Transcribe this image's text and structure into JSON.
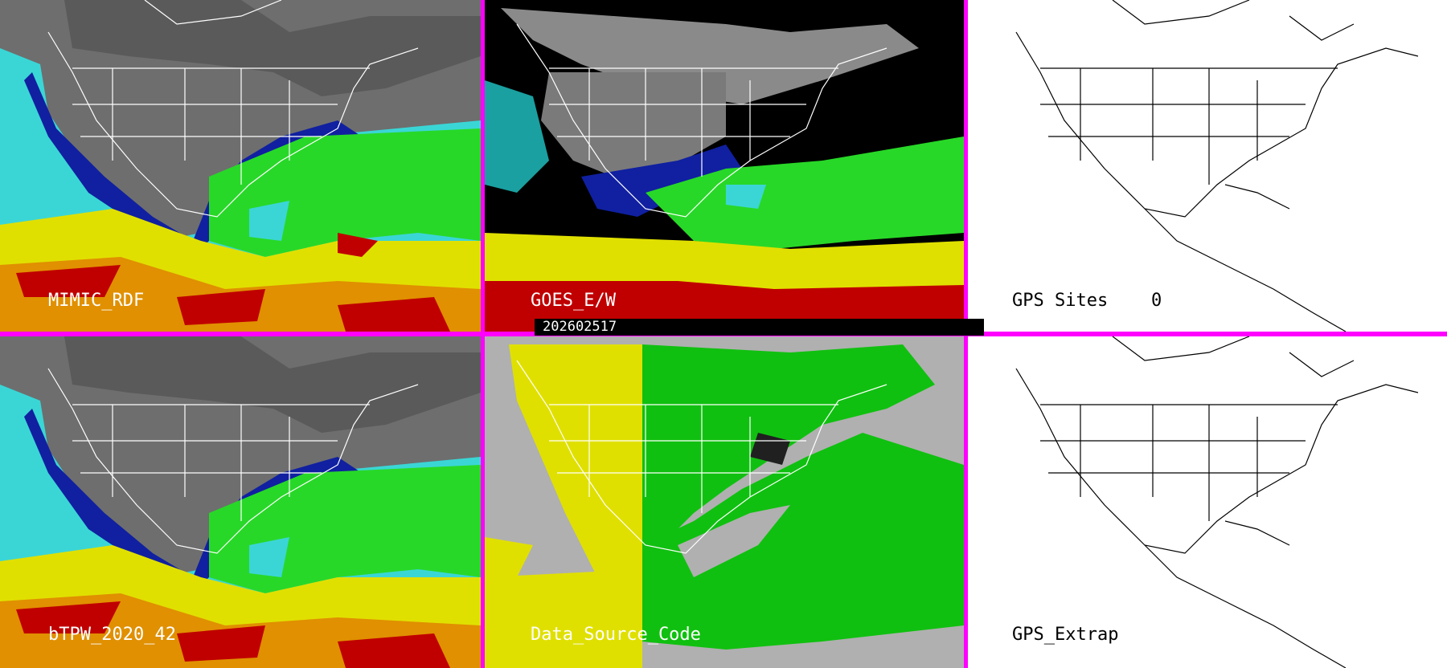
{
  "panels": {
    "top_left": {
      "label": "MIMIC_RDF"
    },
    "top_middle": {
      "label": "GOES_E/W"
    },
    "top_right": {
      "label": "GPS Sites",
      "count": "0"
    },
    "bottom_left": {
      "label": "bTPW_2020_42"
    },
    "bottom_middle": {
      "label": "Data_Source_Code"
    },
    "bottom_right": {
      "label": "GPS_Extrap"
    }
  },
  "timestamp": "202602517",
  "colors": {
    "divider": "#ff00ff",
    "ocean_cyan": "#3ad6d6",
    "tpw_blue": "#1020a0",
    "tpw_green": "#28d828",
    "tpw_yellow": "#e0e000",
    "tpw_red": "#c00000",
    "land_gray": "#6e6e6e",
    "source_gray": "#b0b0b0",
    "source_green": "#10c010",
    "source_yellow": "#e0e000"
  }
}
